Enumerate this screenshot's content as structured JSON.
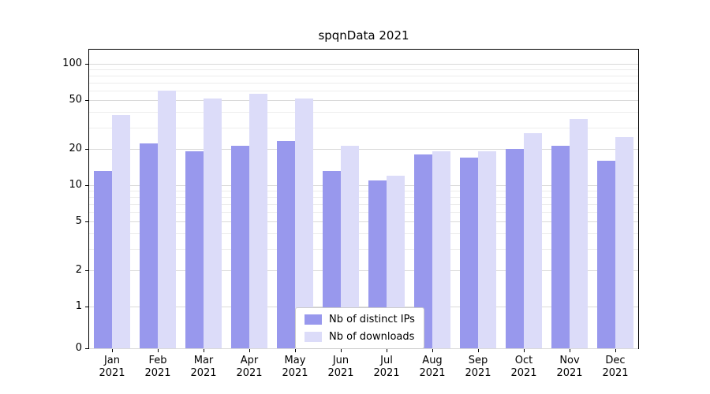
{
  "title": "spqnData 2021",
  "chart_data": {
    "type": "bar",
    "title": "spqnData 2021",
    "categories": [
      "Jan",
      "Feb",
      "Mar",
      "Apr",
      "May",
      "Jun",
      "Jul",
      "Aug",
      "Sep",
      "Oct",
      "Nov",
      "Dec"
    ],
    "category_year": "2021",
    "series": [
      {
        "name": "Nb of distinct IPs",
        "color": "#9898ed",
        "values": [
          13,
          22,
          19,
          21,
          23,
          13,
          11,
          18,
          17,
          20,
          21,
          16
        ]
      },
      {
        "name": "Nb of downloads",
        "color": "#dcdcf9",
        "values": [
          38,
          60,
          52,
          57,
          52,
          21,
          12,
          19,
          19,
          27,
          35,
          25
        ]
      }
    ],
    "xlabel": "",
    "ylabel": "",
    "yscale": "symlog",
    "y_major_ticks": [
      0,
      1,
      2,
      5,
      10,
      20,
      50,
      100
    ],
    "y_minor_ticks": [
      3,
      4,
      6,
      7,
      8,
      9,
      30,
      40,
      60,
      70,
      80,
      90
    ],
    "ylim": [
      0,
      130
    ],
    "grid": "horizontal",
    "legend_position": "lower center"
  }
}
